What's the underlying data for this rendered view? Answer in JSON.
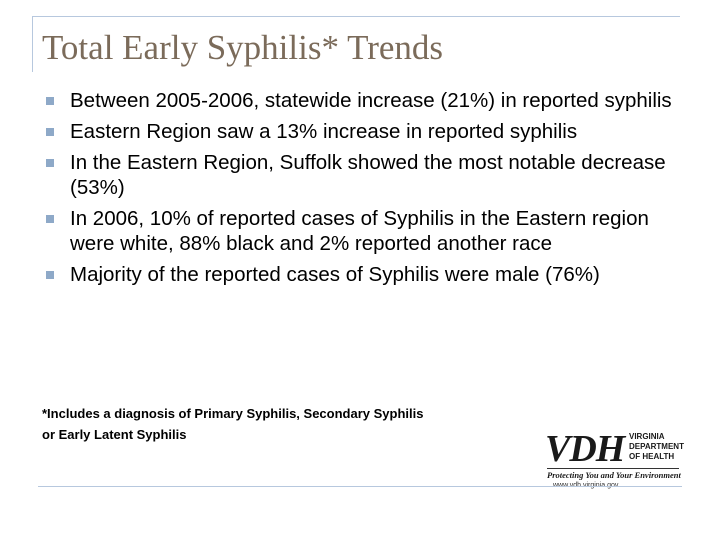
{
  "slide": {
    "title": "Total Early Syphilis* Trends",
    "bullets": [
      "Between 2005-2006, statewide increase (21%) in reported syphilis",
      "Eastern Region saw a 13% increase in reported syphilis",
      "In the Eastern Region, Suffolk showed the most notable decrease (53%)",
      "In 2006, 10% of reported cases of Syphilis in the Eastern region were white, 88% black and 2% reported another race",
      "Majority of the reported cases of Syphilis were male (76%)"
    ],
    "footnote": {
      "line1": "*Includes a diagnosis of Primary Syphilis, Secondary Syphilis",
      "line2": "or Early Latent Syphilis"
    }
  },
  "logo": {
    "mark": "VDH",
    "dept_line1": "VIRGINIA",
    "dept_line2": "DEPARTMENT",
    "dept_line3": "OF HEALTH",
    "tagline": "Protecting You and Your Environment",
    "url": "www.vdh.virginia.gov"
  },
  "colors": {
    "title": "#7b6b5a",
    "bullet_marker": "#8ea9c8",
    "frame_lines": "#b7c8de"
  }
}
